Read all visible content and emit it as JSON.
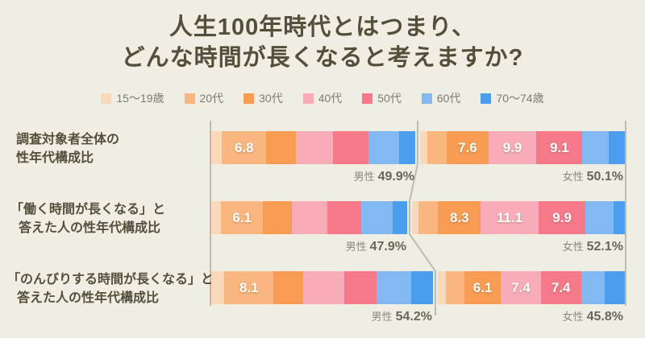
{
  "title": {
    "line1": "人生100年時代とはつまり、",
    "line2": "どんな時間が長くなると考えますか?"
  },
  "legend": [
    {
      "label": "15〜19歳",
      "color": "#FAD8B9"
    },
    {
      "label": "20代",
      "color": "#F9B67E"
    },
    {
      "label": "30代",
      "color": "#F89C53"
    },
    {
      "label": "40代",
      "color": "#F8ACB7"
    },
    {
      "label": "50代",
      "color": "#F6798A"
    },
    {
      "label": "60代",
      "color": "#82B9F2"
    },
    {
      "label": "70〜74歳",
      "color": "#4B9EEE"
    }
  ],
  "chart_data": {
    "type": "bar",
    "stacked": true,
    "orientation": "horizontal",
    "unit": "percent",
    "categories": [
      "15〜19歳",
      "20代",
      "30代",
      "40代",
      "50代",
      "60代",
      "70〜74歳"
    ],
    "colors": [
      "#FAD8B9",
      "#F9B67E",
      "#F89C53",
      "#F8ACB7",
      "#F6798A",
      "#82B9F2",
      "#4B9EEE"
    ],
    "rows": [
      {
        "label_lines": [
          "調査対象者全体の",
          "性年代構成比"
        ],
        "bars": [
          {
            "gender": "男性",
            "total_pct": 49.9,
            "values": [
              2.9,
              6.8,
              7.9,
              10.2,
              9.4,
              8.3,
              4.4
            ],
            "labels": [
              null,
              "6.8",
              null,
              null,
              null,
              null,
              null
            ]
          },
          {
            "gender": "女性",
            "total_pct": 50.1,
            "values": [
              2.4,
              6.7,
              7.6,
              9.9,
              9.1,
              8.9,
              5.5
            ],
            "labels": [
              null,
              null,
              "7.6",
              "9.9",
              "9.1",
              null,
              null
            ]
          }
        ]
      },
      {
        "label_lines": [
          "「働く時間が長くなる」と",
          "答えた人の性年代構成比"
        ],
        "bars": [
          {
            "gender": "男性",
            "total_pct": 47.9,
            "values": [
              2.7,
              6.1,
              7.9,
              9.6,
              9.1,
              8.6,
              3.9
            ],
            "labels": [
              null,
              "6.1",
              null,
              null,
              null,
              null,
              null
            ]
          },
          {
            "gender": "女性",
            "total_pct": 52.1,
            "values": [
              2.2,
              6.9,
              8.3,
              11.1,
              9.9,
              9.7,
              4.0
            ],
            "labels": [
              null,
              null,
              "8.3",
              "11.1",
              "9.9",
              null,
              null
            ]
          }
        ]
      },
      {
        "label_lines": [
          "「のんびりする時間が長くなる」と",
          "答えた人の性年代構成比"
        ],
        "bars": [
          {
            "gender": "男性",
            "total_pct": 54.2,
            "values": [
              3.5,
              8.1,
              7.9,
              11.0,
              8.7,
              9.1,
              5.9
            ],
            "labels": [
              null,
              "8.1",
              null,
              null,
              null,
              null,
              null
            ]
          },
          {
            "gender": "女性",
            "total_pct": 45.8,
            "values": [
              2.7,
              6.7,
              6.1,
              7.4,
              7.4,
              8.4,
              7.1
            ],
            "labels": [
              null,
              null,
              "6.1",
              "7.4",
              "7.4",
              null,
              null
            ]
          }
        ]
      }
    ]
  }
}
